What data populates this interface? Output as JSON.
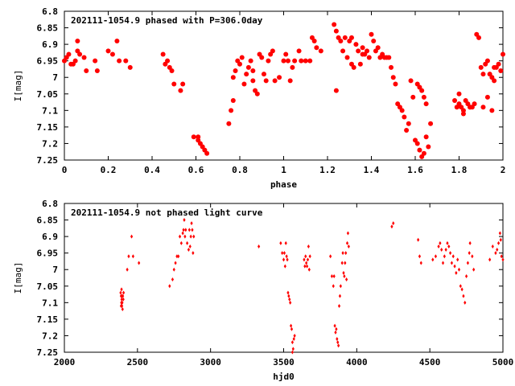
{
  "colors": {
    "points": "#ff0000",
    "frame": "#000000",
    "background": "#ffffff"
  },
  "chart_data": [
    {
      "type": "scatter",
      "title": "202111-1054.9 phased with P=306.0day",
      "xlabel": "phase",
      "ylabel": "I[mag]",
      "xlim": [
        0,
        2
      ],
      "ylim": [
        6.8,
        7.25
      ],
      "y_inverted": true,
      "grid": false,
      "marker": "filled-circle",
      "x_ticks": [
        "0",
        "0.2",
        "0.4",
        "0.6",
        "0.8",
        "1",
        "1.2",
        "1.4",
        "1.6",
        "1.8",
        "2"
      ],
      "y_ticks": [
        "6.8",
        "6.85",
        "6.9",
        "6.95",
        "7",
        "7.05",
        "7.1",
        "7.15",
        "7.2",
        "7.25"
      ],
      "points": [
        [
          0.0,
          6.95
        ],
        [
          0.01,
          6.94
        ],
        [
          0.02,
          6.93
        ],
        [
          0.03,
          6.96
        ],
        [
          0.04,
          6.96
        ],
        [
          0.05,
          6.95
        ],
        [
          0.06,
          6.92
        ],
        [
          0.07,
          6.93
        ],
        [
          0.06,
          6.89
        ],
        [
          0.09,
          6.94
        ],
        [
          0.1,
          6.98
        ],
        [
          0.14,
          6.95
        ],
        [
          0.15,
          6.98
        ],
        [
          0.2,
          6.92
        ],
        [
          0.22,
          6.93
        ],
        [
          0.24,
          6.89
        ],
        [
          0.25,
          6.95
        ],
        [
          0.28,
          6.95
        ],
        [
          0.3,
          6.97
        ],
        [
          0.45,
          6.93
        ],
        [
          0.46,
          6.96
        ],
        [
          0.47,
          6.95
        ],
        [
          0.48,
          6.97
        ],
        [
          0.49,
          6.98
        ],
        [
          0.5,
          7.02
        ],
        [
          0.53,
          7.04
        ],
        [
          0.54,
          7.02
        ],
        [
          0.59,
          7.18
        ],
        [
          0.61,
          7.18
        ],
        [
          0.61,
          7.19
        ],
        [
          0.62,
          7.2
        ],
        [
          0.63,
          7.21
        ],
        [
          0.64,
          7.22
        ],
        [
          0.65,
          7.23
        ],
        [
          0.75,
          7.14
        ],
        [
          0.76,
          7.1
        ],
        [
          0.77,
          7.07
        ],
        [
          0.77,
          7.0
        ],
        [
          0.78,
          6.98
        ],
        [
          0.79,
          6.95
        ],
        [
          0.8,
          6.96
        ],
        [
          0.81,
          6.94
        ],
        [
          0.82,
          7.02
        ],
        [
          0.83,
          6.99
        ],
        [
          0.84,
          6.97
        ],
        [
          0.85,
          6.95
        ],
        [
          0.86,
          6.98
        ],
        [
          0.86,
          7.01
        ],
        [
          0.87,
          7.04
        ],
        [
          0.88,
          7.05
        ],
        [
          0.89,
          6.93
        ],
        [
          0.9,
          6.94
        ],
        [
          0.91,
          6.99
        ],
        [
          0.92,
          7.01
        ],
        [
          0.93,
          6.95
        ],
        [
          0.94,
          6.93
        ],
        [
          0.95,
          6.92
        ],
        [
          0.96,
          7.01
        ],
        [
          0.98,
          7.0
        ],
        [
          1.0,
          6.95
        ],
        [
          1.01,
          6.93
        ],
        [
          1.02,
          6.95
        ],
        [
          1.03,
          7.01
        ],
        [
          1.04,
          6.97
        ],
        [
          1.05,
          6.95
        ],
        [
          1.07,
          6.92
        ],
        [
          1.08,
          6.95
        ],
        [
          1.1,
          6.95
        ],
        [
          1.12,
          6.95
        ],
        [
          1.13,
          6.88
        ],
        [
          1.14,
          6.89
        ],
        [
          1.15,
          6.91
        ],
        [
          1.17,
          6.92
        ],
        [
          1.23,
          6.84
        ],
        [
          1.24,
          6.86
        ],
        [
          1.24,
          7.04
        ],
        [
          1.25,
          6.88
        ],
        [
          1.26,
          6.89
        ],
        [
          1.27,
          6.92
        ],
        [
          1.28,
          6.88
        ],
        [
          1.29,
          6.94
        ],
        [
          1.3,
          6.89
        ],
        [
          1.31,
          6.96
        ],
        [
          1.31,
          6.88
        ],
        [
          1.32,
          6.97
        ],
        [
          1.33,
          6.9
        ],
        [
          1.34,
          6.92
        ],
        [
          1.35,
          6.96
        ],
        [
          1.36,
          6.93
        ],
        [
          1.36,
          6.91
        ],
        [
          1.37,
          6.93
        ],
        [
          1.38,
          6.92
        ],
        [
          1.39,
          6.94
        ],
        [
          1.4,
          6.87
        ],
        [
          1.41,
          6.89
        ],
        [
          1.42,
          6.92
        ],
        [
          1.43,
          6.91
        ],
        [
          1.44,
          6.94
        ],
        [
          1.45,
          6.93
        ],
        [
          1.46,
          6.94
        ],
        [
          1.47,
          6.94
        ],
        [
          1.48,
          6.94
        ],
        [
          1.49,
          6.97
        ],
        [
          1.5,
          7.0
        ],
        [
          1.51,
          7.02
        ],
        [
          1.52,
          7.08
        ],
        [
          1.53,
          7.09
        ],
        [
          1.54,
          7.1
        ],
        [
          1.55,
          7.12
        ],
        [
          1.56,
          7.16
        ],
        [
          1.57,
          7.14
        ],
        [
          1.58,
          7.01
        ],
        [
          1.59,
          7.06
        ],
        [
          1.6,
          7.19
        ],
        [
          1.61,
          7.2
        ],
        [
          1.62,
          7.22
        ],
        [
          1.63,
          7.24
        ],
        [
          1.64,
          7.23
        ],
        [
          1.65,
          7.18
        ],
        [
          1.66,
          7.21
        ],
        [
          1.67,
          7.14
        ],
        [
          1.61,
          7.02
        ],
        [
          1.63,
          7.04
        ],
        [
          1.64,
          7.06
        ],
        [
          1.65,
          7.08
        ],
        [
          1.62,
          7.03
        ],
        [
          1.78,
          7.07
        ],
        [
          1.79,
          7.09
        ],
        [
          1.8,
          7.08
        ],
        [
          1.81,
          7.09
        ],
        [
          1.82,
          7.1
        ],
        [
          1.83,
          7.07
        ],
        [
          1.84,
          7.08
        ],
        [
          1.85,
          7.09
        ],
        [
          1.86,
          7.09
        ],
        [
          1.87,
          7.08
        ],
        [
          1.88,
          6.87
        ],
        [
          1.89,
          6.88
        ],
        [
          1.9,
          6.97
        ],
        [
          1.91,
          6.99
        ],
        [
          1.92,
          6.96
        ],
        [
          1.93,
          6.95
        ],
        [
          1.94,
          6.99
        ],
        [
          1.95,
          7.0
        ],
        [
          1.96,
          6.97
        ],
        [
          1.97,
          6.97
        ],
        [
          1.98,
          6.96
        ],
        [
          1.99,
          6.98
        ],
        [
          2.0,
          6.93
        ],
        [
          1.8,
          7.05
        ],
        [
          1.82,
          7.11
        ],
        [
          1.85,
          7.09
        ],
        [
          1.91,
          7.09
        ],
        [
          1.93,
          7.06
        ],
        [
          1.95,
          7.1
        ],
        [
          1.96,
          7.01
        ]
      ]
    },
    {
      "type": "scatter",
      "title": "202111-1054.9 not phased light curve",
      "xlabel": "hjd0",
      "ylabel": "I[mag]",
      "xlim": [
        2000,
        5000
      ],
      "ylim": [
        6.8,
        7.25
      ],
      "y_inverted": true,
      "grid": false,
      "marker": "small-diamond",
      "x_ticks": [
        "2000",
        "2500",
        "3000",
        "3500",
        "4000",
        "4500",
        "5000"
      ],
      "y_ticks": [
        "6.8",
        "6.85",
        "6.9",
        "6.95",
        "7",
        "7.05",
        "7.1",
        "7.15",
        "7.2",
        "7.25"
      ],
      "points": [
        [
          2385,
          7.07
        ],
        [
          2388,
          7.08
        ],
        [
          2390,
          7.1
        ],
        [
          2392,
          7.09
        ],
        [
          2394,
          7.11
        ],
        [
          2396,
          7.1
        ],
        [
          2398,
          7.12
        ],
        [
          2400,
          7.08
        ],
        [
          2403,
          7.09
        ],
        [
          2405,
          7.07
        ],
        [
          2388,
          7.11
        ],
        [
          2391,
          7.06
        ],
        [
          2394,
          7.08
        ],
        [
          2430,
          7.0
        ],
        [
          2440,
          6.96
        ],
        [
          2460,
          6.9
        ],
        [
          2470,
          6.96
        ],
        [
          2510,
          6.98
        ],
        [
          2720,
          7.05
        ],
        [
          2740,
          7.03
        ],
        [
          2750,
          7.0
        ],
        [
          2760,
          6.98
        ],
        [
          2770,
          6.96
        ],
        [
          2780,
          6.96
        ],
        [
          2790,
          6.9
        ],
        [
          2800,
          6.92
        ],
        [
          2810,
          6.89
        ],
        [
          2815,
          6.88
        ],
        [
          2820,
          6.85
        ],
        [
          2825,
          6.9
        ],
        [
          2830,
          6.88
        ],
        [
          2840,
          6.92
        ],
        [
          2850,
          6.94
        ],
        [
          2855,
          6.88
        ],
        [
          2860,
          6.93
        ],
        [
          2865,
          6.9
        ],
        [
          2870,
          6.86
        ],
        [
          2875,
          6.88
        ],
        [
          2880,
          6.95
        ],
        [
          2885,
          6.9
        ],
        [
          3330,
          6.93
        ],
        [
          3480,
          6.92
        ],
        [
          3490,
          6.95
        ],
        [
          3500,
          6.97
        ],
        [
          3505,
          6.95
        ],
        [
          3510,
          6.99
        ],
        [
          3515,
          6.92
        ],
        [
          3520,
          6.96
        ],
        [
          3525,
          6.97
        ],
        [
          3530,
          7.07
        ],
        [
          3535,
          7.08
        ],
        [
          3540,
          7.09
        ],
        [
          3545,
          7.1
        ],
        [
          3550,
          7.17
        ],
        [
          3555,
          7.18
        ],
        [
          3560,
          7.22
        ],
        [
          3565,
          7.24
        ],
        [
          3570,
          7.21
        ],
        [
          3575,
          7.2
        ],
        [
          3560,
          7.25
        ],
        [
          3640,
          6.97
        ],
        [
          3645,
          6.99
        ],
        [
          3650,
          6.96
        ],
        [
          3655,
          6.98
        ],
        [
          3660,
          6.99
        ],
        [
          3665,
          6.97
        ],
        [
          3670,
          6.93
        ],
        [
          3675,
          7.0
        ],
        [
          3680,
          6.96
        ],
        [
          3820,
          6.96
        ],
        [
          3830,
          7.02
        ],
        [
          3840,
          7.05
        ],
        [
          3845,
          7.02
        ],
        [
          3850,
          7.17
        ],
        [
          3855,
          7.19
        ],
        [
          3860,
          7.18
        ],
        [
          3865,
          7.21
        ],
        [
          3870,
          7.22
        ],
        [
          3875,
          7.23
        ],
        [
          3880,
          7.11
        ],
        [
          3885,
          7.08
        ],
        [
          3890,
          7.05
        ],
        [
          3900,
          6.98
        ],
        [
          3905,
          6.95
        ],
        [
          3910,
          7.01
        ],
        [
          3915,
          7.02
        ],
        [
          3920,
          6.98
        ],
        [
          3925,
          6.95
        ],
        [
          3930,
          7.03
        ],
        [
          3935,
          6.92
        ],
        [
          3940,
          6.89
        ],
        [
          3945,
          6.93
        ],
        [
          4240,
          6.87
        ],
        [
          4250,
          6.86
        ],
        [
          4420,
          6.91
        ],
        [
          4430,
          6.96
        ],
        [
          4440,
          6.98
        ],
        [
          4520,
          6.97
        ],
        [
          4540,
          6.96
        ],
        [
          4560,
          6.93
        ],
        [
          4570,
          6.92
        ],
        [
          4580,
          6.94
        ],
        [
          4590,
          6.98
        ],
        [
          4600,
          6.96
        ],
        [
          4610,
          6.94
        ],
        [
          4620,
          6.92
        ],
        [
          4630,
          6.93
        ],
        [
          4640,
          6.95
        ],
        [
          4650,
          6.98
        ],
        [
          4660,
          6.96
        ],
        [
          4670,
          6.99
        ],
        [
          4680,
          7.01
        ],
        [
          4690,
          6.97
        ],
        [
          4700,
          7.0
        ],
        [
          4710,
          7.05
        ],
        [
          4720,
          7.06
        ],
        [
          4730,
          7.08
        ],
        [
          4740,
          7.1
        ],
        [
          4750,
          7.02
        ],
        [
          4760,
          6.98
        ],
        [
          4770,
          6.95
        ],
        [
          4775,
          6.92
        ],
        [
          4790,
          6.96
        ],
        [
          4800,
          7.0
        ],
        [
          4910,
          6.97
        ],
        [
          4930,
          6.93
        ],
        [
          4950,
          6.95
        ],
        [
          4970,
          6.92
        ],
        [
          4980,
          6.89
        ],
        [
          4990,
          6.96
        ],
        [
          5000,
          6.97
        ],
        [
          4960,
          6.94
        ],
        [
          4985,
          6.91
        ]
      ]
    }
  ]
}
